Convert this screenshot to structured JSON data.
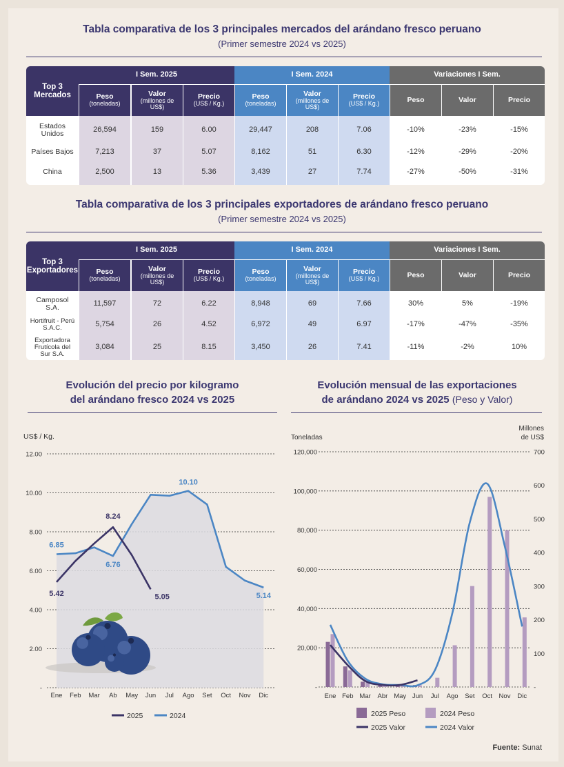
{
  "markets_table": {
    "title": "Tabla comparativa de los 3 principales mercados del arándano fresco peruano",
    "subtitle": "(Primer semestre 2024 vs 2025)",
    "corner": "Top 3 Mercados",
    "group_2025": "I Sem. 2025",
    "group_2024": "I Sem. 2024",
    "group_var": "Variaciones I Sem.",
    "col_peso": "Peso",
    "col_peso_unit": "(toneladas)",
    "col_valor": "Valor",
    "col_valor_unit": "(millones de US$)",
    "col_precio": "Precio",
    "col_precio_unit": "(US$ / Kg.)",
    "var_peso": "Peso",
    "var_valor": "Valor",
    "var_precio": "Precio",
    "rows": [
      {
        "label": "Estados Unidos",
        "p25": "26,594",
        "v25": "159",
        "pr25": "6.00",
        "p24": "29,447",
        "v24": "208",
        "pr24": "7.06",
        "vp": "-10%",
        "vv": "-23%",
        "vpr": "-15%"
      },
      {
        "label": "Países Bajos",
        "p25": "7,213",
        "v25": "37",
        "pr25": "5.07",
        "p24": "8,162",
        "v24": "51",
        "pr24": "6.30",
        "vp": "-12%",
        "vv": "-29%",
        "vpr": "-20%"
      },
      {
        "label": "China",
        "p25": "2,500",
        "v25": "13",
        "pr25": "5.36",
        "p24": "3,439",
        "v24": "27",
        "pr24": "7.74",
        "vp": "-27%",
        "vv": "-50%",
        "vpr": "-31%"
      }
    ]
  },
  "exporters_table": {
    "title": "Tabla comparativa de los 3 principales exportadores de arándano fresco peruano",
    "subtitle": "(Primer semestre 2024 vs 2025)",
    "corner": "Top 3 Exportadores",
    "group_2025": "I Sem. 2025",
    "group_2024": "I Sem. 2024",
    "group_var": "Variaciones I Sem.",
    "col_peso": "Peso",
    "col_peso_unit": "(toneladas)",
    "col_valor": "Valor",
    "col_valor_unit": "(millones de US$)",
    "col_precio": "Precio",
    "col_precio_unit": "(US$ / Kg.)",
    "var_peso": "Peso",
    "var_valor": "Valor",
    "var_precio": "Precio",
    "rows": [
      {
        "label": "Camposol S.A.",
        "p25": "11,597",
        "v25": "72",
        "pr25": "6.22",
        "p24": "8,948",
        "v24": "69",
        "pr24": "7.66",
        "vp": "30%",
        "vv": "5%",
        "vpr": "-19%"
      },
      {
        "label": "Hortifruit - Perú S.A.C.",
        "p25": "5,754",
        "v25": "26",
        "pr25": "4.52",
        "p24": "6,972",
        "v24": "49",
        "pr24": "6.97",
        "vp": "-17%",
        "vv": "-47%",
        "vpr": "-35%"
      },
      {
        "label": "Exportadora Frutícola del Sur S.A.",
        "p25": "3,084",
        "v25": "25",
        "pr25": "8.15",
        "p24": "3,450",
        "v24": "26",
        "pr24": "7.41",
        "vp": "-11%",
        "vv": "-2%",
        "vpr": "10%"
      }
    ]
  },
  "price_chart": {
    "title_line1": "Evolución del precio por kilogramo",
    "title_line2": "del arándano fresco 2024 vs 2025",
    "legend_2025": "2025",
    "legend_2024": "2024"
  },
  "exports_chart": {
    "title_line1": "Evolución mensual de las exportaciones",
    "title_line2": "de arándano 2024 vs 2025",
    "title_suffix": "(Peso y Valor)",
    "legend_peso_2025": "2025 Peso",
    "legend_peso_2024": "2024 Peso",
    "legend_valor_2025": "2025 Valor",
    "legend_valor_2024": "2024 Valor"
  },
  "source": {
    "label": "Fuente:",
    "value": "Sunat"
  },
  "colors": {
    "dark": "#3b3466",
    "blue": "#4b86c4",
    "grey": "#6b6b6b",
    "bar2025": "#8a6a96",
    "bar2024": "#b49cc0"
  },
  "chart_data": [
    {
      "type": "line",
      "ylabel": "US$ / Kg.",
      "ylim": [
        0,
        12
      ],
      "yticks": [
        "-",
        "2.00",
        "4.00",
        "6.00",
        "8.00",
        "10.00",
        "12.00"
      ],
      "categories": [
        "Ene",
        "Feb",
        "Mar",
        "Ab",
        "May",
        "Jun",
        "Jul",
        "Ago",
        "Set",
        "Oct",
        "Nov",
        "Dic"
      ],
      "series": [
        {
          "name": "2025",
          "values": [
            5.42,
            6.5,
            7.4,
            8.24,
            6.8,
            5.05,
            null,
            null,
            null,
            null,
            null,
            null
          ],
          "labels": [
            "5.42",
            "",
            "",
            "8.24",
            "",
            "5.05",
            "",
            "",
            "",
            "",
            "",
            ""
          ]
        },
        {
          "name": "2024",
          "values": [
            6.85,
            6.9,
            7.2,
            6.76,
            8.4,
            9.9,
            9.85,
            10.1,
            9.4,
            6.2,
            5.5,
            5.14
          ],
          "labels": [
            "6.85",
            "",
            "",
            "6.76",
            "",
            "",
            "",
            "10.10",
            "",
            "",
            "",
            "5.14"
          ]
        }
      ],
      "grid": true,
      "legend": "bottom"
    },
    {
      "type": "bar",
      "ylabel": "Toneladas",
      "y2label": "Millones de US$",
      "ylim": [
        0,
        120000
      ],
      "y2lim": [
        0,
        700
      ],
      "yticks": [
        "-",
        "20,000",
        "40,000",
        "60,000",
        "80,000",
        "100,000",
        "120,000"
      ],
      "y2ticks": [
        "-",
        "100",
        "200",
        "300",
        "400",
        "500",
        "600",
        "700"
      ],
      "categories": [
        "Ene",
        "Feb",
        "Mar",
        "Abr",
        "May",
        "Jun",
        "Jul",
        "Ago",
        "Set",
        "Oct",
        "Nov",
        "Dic"
      ],
      "series": [
        {
          "name": "2025 Peso",
          "kind": "bar",
          "axis": "left",
          "values": [
            23000,
            10500,
            2700,
            1000,
            700,
            1000,
            null,
            null,
            null,
            null,
            null,
            null
          ]
        },
        {
          "name": "2024 Peso",
          "kind": "bar",
          "axis": "left",
          "values": [
            27000,
            8500,
            3500,
            1000,
            800,
            800,
            4700,
            21300,
            51500,
            97000,
            80000,
            35500
          ]
        },
        {
          "name": "2025 Valor",
          "kind": "line",
          "axis": "right",
          "values": [
            125,
            65,
            18,
            6,
            6,
            20,
            null,
            null,
            null,
            null,
            null,
            null
          ]
        },
        {
          "name": "2024 Valor",
          "kind": "line",
          "axis": "right",
          "values": [
            185,
            78,
            25,
            8,
            6,
            5,
            50,
            220,
            490,
            605,
            420,
            180
          ]
        }
      ],
      "grid": true,
      "legend": "bottom"
    }
  ]
}
